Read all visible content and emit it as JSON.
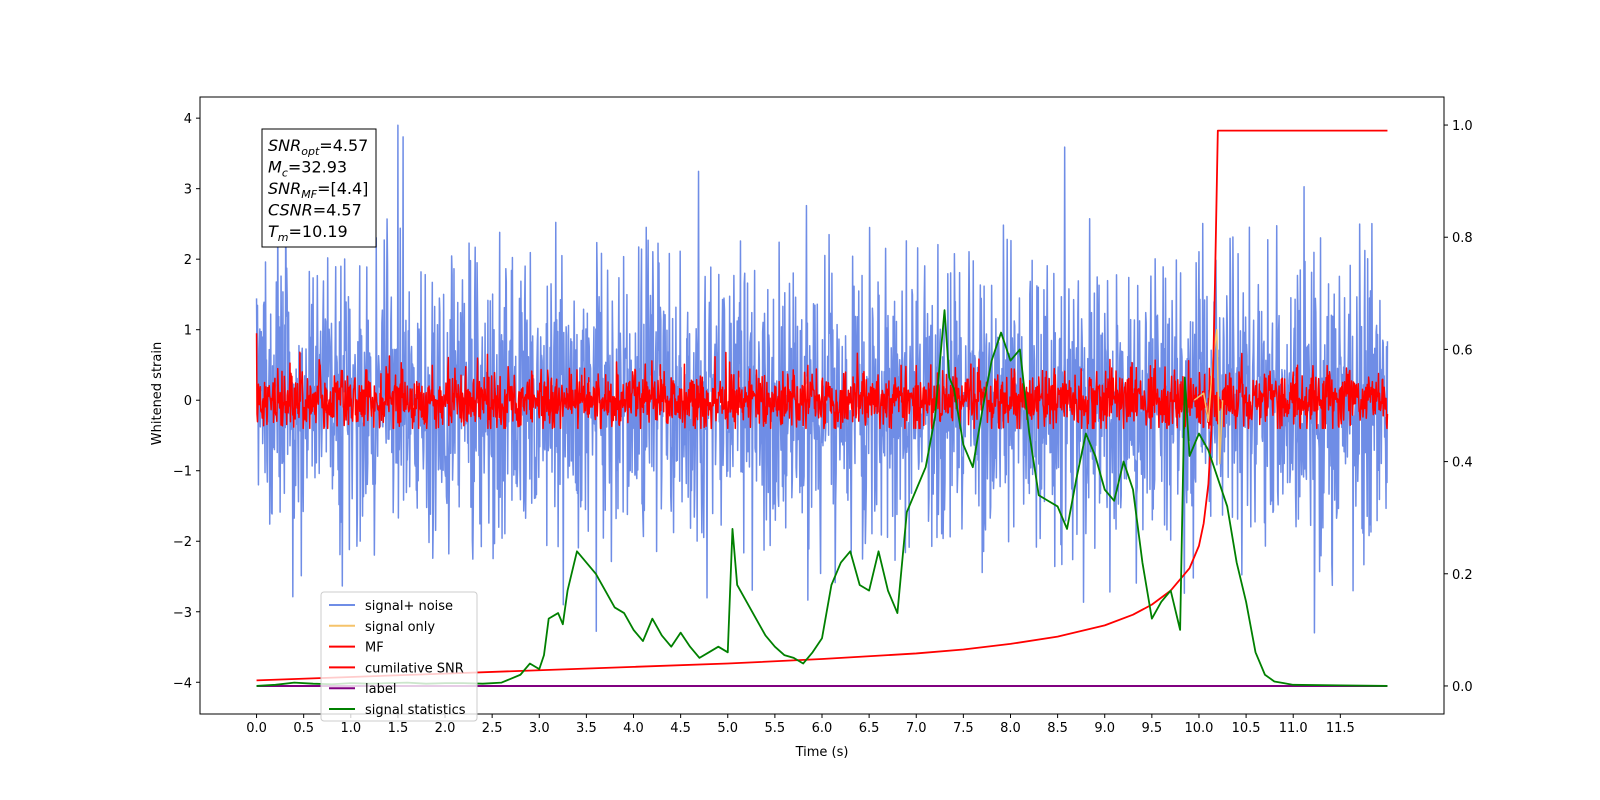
{
  "chart_data": {
    "type": "line",
    "xlabel": "Time (s)",
    "ylabel_left": "Whitened strain",
    "ylabel_right": "",
    "title": "",
    "xlim": [
      -0.6,
      12.6
    ],
    "ylim_left": [
      -4.45,
      4.3
    ],
    "ylim_right": [
      -0.05,
      1.05
    ],
    "grid": false,
    "x_ticks": [
      "0.0",
      "0.5",
      "1.0",
      "1.5",
      "2.0",
      "2.5",
      "3.0",
      "3.5",
      "4.0",
      "4.5",
      "5.0",
      "5.5",
      "6.0",
      "6.5",
      "7.0",
      "7.5",
      "8.0",
      "8.5",
      "9.0",
      "9.5",
      "10.0",
      "10.5",
      "11.0",
      "11.5"
    ],
    "y_ticks_left": [
      "4",
      "3",
      "2",
      "1",
      "0",
      "−1",
      "−2",
      "−3",
      "−4"
    ],
    "y_ticks_right": [
      "1.0",
      "0.8",
      "0.6",
      "0.4",
      "0.2",
      "0.0"
    ],
    "legend_placement": "lower-left",
    "legend": [
      {
        "label": "signal+ noise",
        "color": "#6f8de6"
      },
      {
        "label": "signal only",
        "color": "#f5c36a"
      },
      {
        "label": "MF",
        "color": "#ff0000"
      },
      {
        "label": "cumilative SNR",
        "color": "#ff0000"
      },
      {
        "label": "label",
        "color": "#800080"
      },
      {
        "label": "signal statistics",
        "color": "#008000"
      }
    ],
    "textbox": [
      {
        "sym": "SNR",
        "sub": "opt",
        "val": "=4.57"
      },
      {
        "sym": "M",
        "sub": "c",
        "val": "=32.93"
      },
      {
        "sym": "SNR",
        "sub": "MF",
        "val": "=[4.4]"
      },
      {
        "sym": "CSNR",
        "sub": "",
        "val": "=4.57"
      },
      {
        "sym": "T",
        "sub": "m",
        "val": "=10.19"
      }
    ],
    "series": [
      {
        "name": "signal+ noise",
        "axis": "left",
        "style": "noise",
        "description_params": {
          "x_start": 0.0,
          "x_end": 12.0,
          "std": 1.05,
          "typical_range": [
            -3.3,
            3.9
          ]
        }
      },
      {
        "name": "signal only",
        "axis": "left",
        "x": [
          9.95,
          10.05,
          10.1,
          10.15,
          10.19,
          10.22,
          10.25
        ],
        "y": [
          0.0,
          0.1,
          -0.3,
          0.6,
          1.0,
          -0.9,
          0.0
        ]
      },
      {
        "name": "MF",
        "axis": "left",
        "style": "noise",
        "description_params": {
          "x_start": 0.0,
          "x_end": 12.0,
          "center": 0.0,
          "std": 0.2,
          "typical_range": [
            -0.4,
            0.95
          ]
        }
      },
      {
        "name": "cumilative SNR",
        "axis": "right",
        "x": [
          0.0,
          1.0,
          2.0,
          3.0,
          4.0,
          5.0,
          6.0,
          7.0,
          7.5,
          8.0,
          8.5,
          9.0,
          9.3,
          9.5,
          9.7,
          9.9,
          10.0,
          10.05,
          10.1,
          10.13,
          10.15,
          10.17,
          10.19,
          10.2,
          11.0,
          12.0
        ],
        "y": [
          0.01,
          0.016,
          0.022,
          0.028,
          0.034,
          0.04,
          0.048,
          0.058,
          0.065,
          0.075,
          0.088,
          0.108,
          0.127,
          0.145,
          0.17,
          0.21,
          0.25,
          0.29,
          0.36,
          0.45,
          0.56,
          0.72,
          0.9,
          0.99,
          0.99,
          0.99
        ]
      },
      {
        "name": "label",
        "axis": "right",
        "x": [
          0.0,
          12.0
        ],
        "y": [
          0.0,
          0.0
        ]
      },
      {
        "name": "signal statistics",
        "axis": "right",
        "x": [
          0.0,
          0.2,
          0.4,
          0.6,
          0.8,
          1.0,
          1.2,
          1.4,
          1.6,
          1.8,
          2.0,
          2.2,
          2.4,
          2.6,
          2.8,
          2.9,
          3.0,
          3.05,
          3.1,
          3.2,
          3.25,
          3.3,
          3.4,
          3.5,
          3.6,
          3.7,
          3.8,
          3.9,
          4.0,
          4.1,
          4.2,
          4.3,
          4.4,
          4.5,
          4.6,
          4.7,
          4.8,
          4.9,
          5.0,
          5.05,
          5.1,
          5.2,
          5.3,
          5.4,
          5.5,
          5.6,
          5.7,
          5.8,
          5.9,
          6.0,
          6.1,
          6.2,
          6.3,
          6.4,
          6.5,
          6.6,
          6.7,
          6.8,
          6.9,
          7.0,
          7.1,
          7.2,
          7.3,
          7.35,
          7.4,
          7.5,
          7.6,
          7.7,
          7.8,
          7.9,
          8.0,
          8.1,
          8.2,
          8.3,
          8.4,
          8.5,
          8.6,
          8.7,
          8.75,
          8.8,
          8.9,
          9.0,
          9.1,
          9.2,
          9.3,
          9.4,
          9.5,
          9.6,
          9.7,
          9.8,
          9.85,
          9.9,
          10.0,
          10.1,
          10.2,
          10.3,
          10.4,
          10.5,
          10.6,
          10.7,
          10.8,
          10.9,
          11.0,
          11.5,
          12.0
        ],
        "y": [
          0.0,
          0.002,
          0.006,
          0.004,
          0.003,
          0.005,
          0.004,
          0.005,
          0.006,
          0.004,
          0.005,
          0.005,
          0.004,
          0.006,
          0.02,
          0.04,
          0.03,
          0.055,
          0.12,
          0.13,
          0.11,
          0.17,
          0.24,
          0.22,
          0.2,
          0.17,
          0.14,
          0.13,
          0.1,
          0.08,
          0.12,
          0.09,
          0.07,
          0.095,
          0.07,
          0.05,
          0.06,
          0.07,
          0.06,
          0.28,
          0.18,
          0.15,
          0.12,
          0.09,
          0.07,
          0.055,
          0.05,
          0.04,
          0.06,
          0.085,
          0.18,
          0.22,
          0.24,
          0.18,
          0.17,
          0.24,
          0.17,
          0.13,
          0.31,
          0.35,
          0.39,
          0.48,
          0.67,
          0.55,
          0.53,
          0.43,
          0.39,
          0.49,
          0.58,
          0.63,
          0.58,
          0.6,
          0.45,
          0.34,
          0.33,
          0.32,
          0.28,
          0.37,
          0.41,
          0.45,
          0.41,
          0.35,
          0.33,
          0.4,
          0.35,
          0.22,
          0.12,
          0.15,
          0.17,
          0.1,
          0.55,
          0.41,
          0.45,
          0.42,
          0.37,
          0.32,
          0.22,
          0.15,
          0.06,
          0.02,
          0.008,
          0.005,
          0.002,
          0.001,
          0.0
        ]
      }
    ]
  }
}
